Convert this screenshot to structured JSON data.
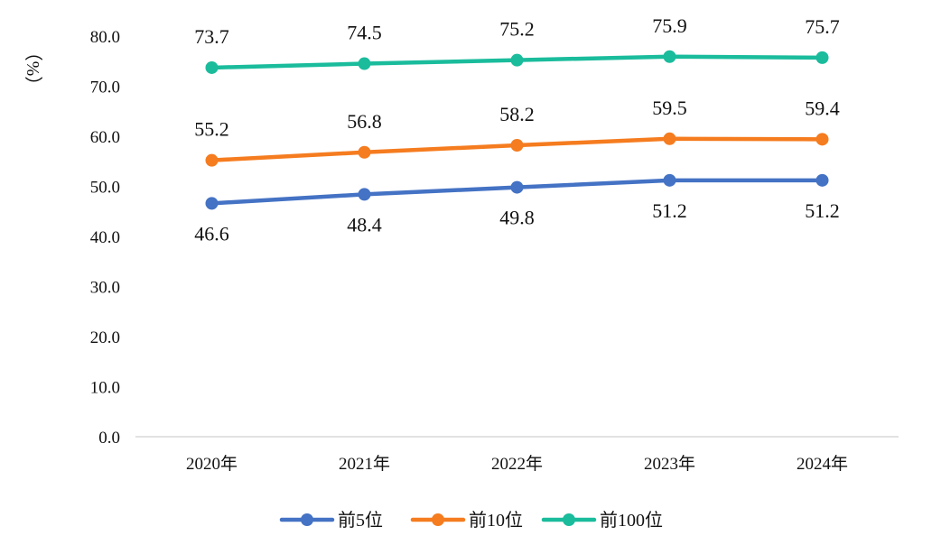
{
  "chart_data": {
    "type": "line",
    "ylabel": "（%）",
    "ylim": [
      0,
      80
    ],
    "yticks": [
      "0.0",
      "10.0",
      "20.0",
      "30.0",
      "40.0",
      "50.0",
      "60.0",
      "70.0",
      "80.0"
    ],
    "categories": [
      "2020年",
      "2021年",
      "2022年",
      "2023年",
      "2024年"
    ],
    "grid": false,
    "legend_position": "bottom",
    "series": [
      {
        "name": "前5位",
        "color": "#4472C4",
        "values": [
          46.6,
          48.4,
          49.8,
          51.2,
          51.2
        ],
        "labels": [
          "46.6",
          "48.4",
          "49.8",
          "51.2",
          "51.2"
        ],
        "label_position": "below"
      },
      {
        "name": "前10位",
        "color": "#F57C1F",
        "values": [
          55.2,
          56.8,
          58.2,
          59.5,
          59.4
        ],
        "labels": [
          "55.2",
          "56.8",
          "58.2",
          "59.5",
          "59.4"
        ],
        "label_position": "above"
      },
      {
        "name": "前100位",
        "color": "#1ABC9C",
        "values": [
          73.7,
          74.5,
          75.2,
          75.9,
          75.7
        ],
        "labels": [
          "73.7",
          "74.5",
          "75.2",
          "75.9",
          "75.7"
        ],
        "label_position": "above"
      }
    ]
  }
}
